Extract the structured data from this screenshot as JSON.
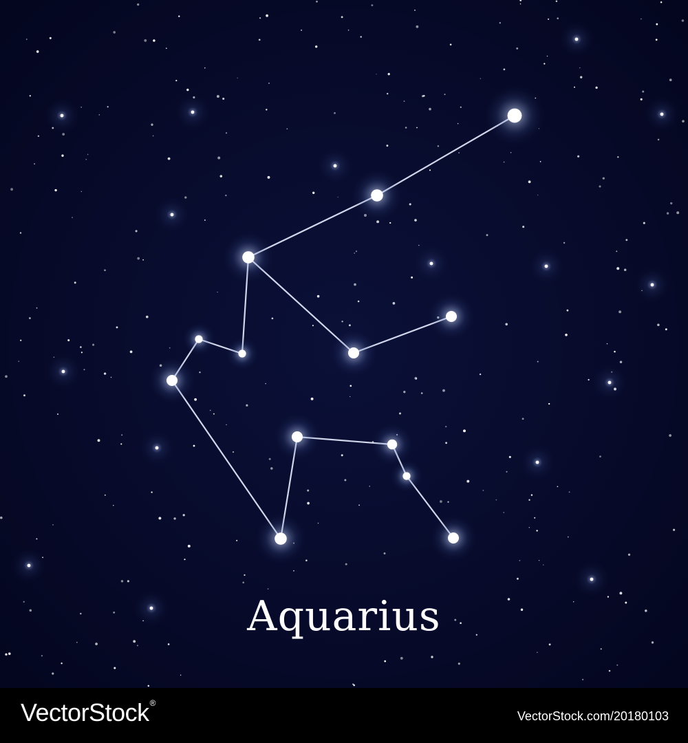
{
  "artwork": {
    "title": "Aquarius",
    "colors": {
      "sky": "#06092a",
      "star": "#ffffff",
      "line": "#e8ecff",
      "glow": "#4f6aa8"
    }
  },
  "footer": {
    "brand": "VectorStock",
    "brand_mark": "®",
    "image_id": "VectorStock.com/20180103"
  }
}
